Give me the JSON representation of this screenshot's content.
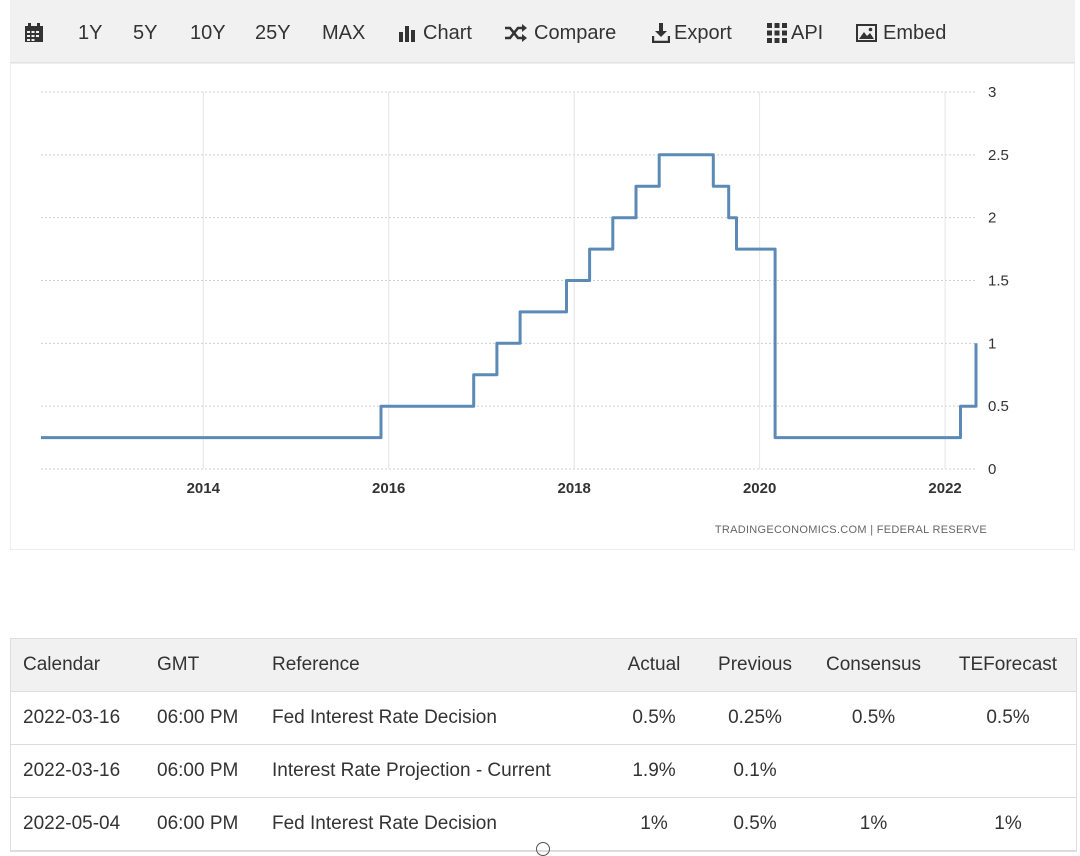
{
  "toolbar": {
    "calendar_icon": "calendar-icon",
    "ranges": [
      "1Y",
      "5Y",
      "10Y",
      "25Y",
      "MAX"
    ],
    "chart_label": "Chart",
    "compare_label": "Compare",
    "export_label": "Export",
    "api_label": "API",
    "embed_label": "Embed"
  },
  "chart": {
    "credit": "TRADINGECONOMICS.COM  |  FEDERAL RESERVE",
    "line_color": "#5b8ab6"
  },
  "chart_data": {
    "type": "line",
    "title": "",
    "xlabel": "",
    "ylabel": "",
    "x_ticks": [
      "2014",
      "2016",
      "2018",
      "2020",
      "2022"
    ],
    "y_ticks": [
      "0",
      "0.5",
      "1",
      "1.5",
      "2",
      "2.5",
      "3"
    ],
    "ylim": [
      0,
      3
    ],
    "xlim": [
      "2012-04",
      "2022-05"
    ],
    "y_axis_side": "right",
    "grid": true,
    "legend": "none",
    "series": [
      {
        "x": [
          "2012-04",
          "2015-12",
          "2015-12",
          "2016-12",
          "2016-12",
          "2017-03",
          "2017-03",
          "2017-06",
          "2017-06",
          "2017-12",
          "2017-12",
          "2018-03",
          "2018-03",
          "2018-06",
          "2018-06",
          "2018-09",
          "2018-09",
          "2018-12",
          "2018-12",
          "2019-07",
          "2019-07",
          "2019-09",
          "2019-09",
          "2019-10",
          "2019-10",
          "2020-03",
          "2020-03",
          "2020-03",
          "2020-03",
          "2022-03",
          "2022-03",
          "2022-05",
          "2022-05"
        ],
        "y": [
          0.25,
          0.25,
          0.5,
          0.5,
          0.75,
          0.75,
          1.0,
          1.0,
          1.25,
          1.25,
          1.5,
          1.5,
          1.75,
          1.75,
          2.0,
          2.0,
          2.25,
          2.25,
          2.5,
          2.5,
          2.25,
          2.25,
          2.0,
          2.0,
          1.75,
          1.75,
          1.25,
          0.75,
          0.25,
          0.25,
          0.5,
          0.5,
          1.0
        ]
      }
    ]
  },
  "calendar_table": {
    "headers": [
      "Calendar",
      "GMT",
      "Reference",
      "Actual",
      "Previous",
      "Consensus",
      "TEForecast"
    ],
    "rows": [
      [
        "2022-03-16",
        "06:00 PM",
        "Fed Interest Rate Decision",
        "0.5%",
        "0.25%",
        "0.5%",
        "0.5%"
      ],
      [
        "2022-03-16",
        "06:00 PM",
        "Interest Rate Projection - Current",
        "1.9%",
        "0.1%",
        "",
        ""
      ],
      [
        "2022-05-04",
        "06:00 PM",
        "Fed Interest Rate Decision",
        "1%",
        "0.5%",
        "1%",
        "1%"
      ]
    ]
  }
}
